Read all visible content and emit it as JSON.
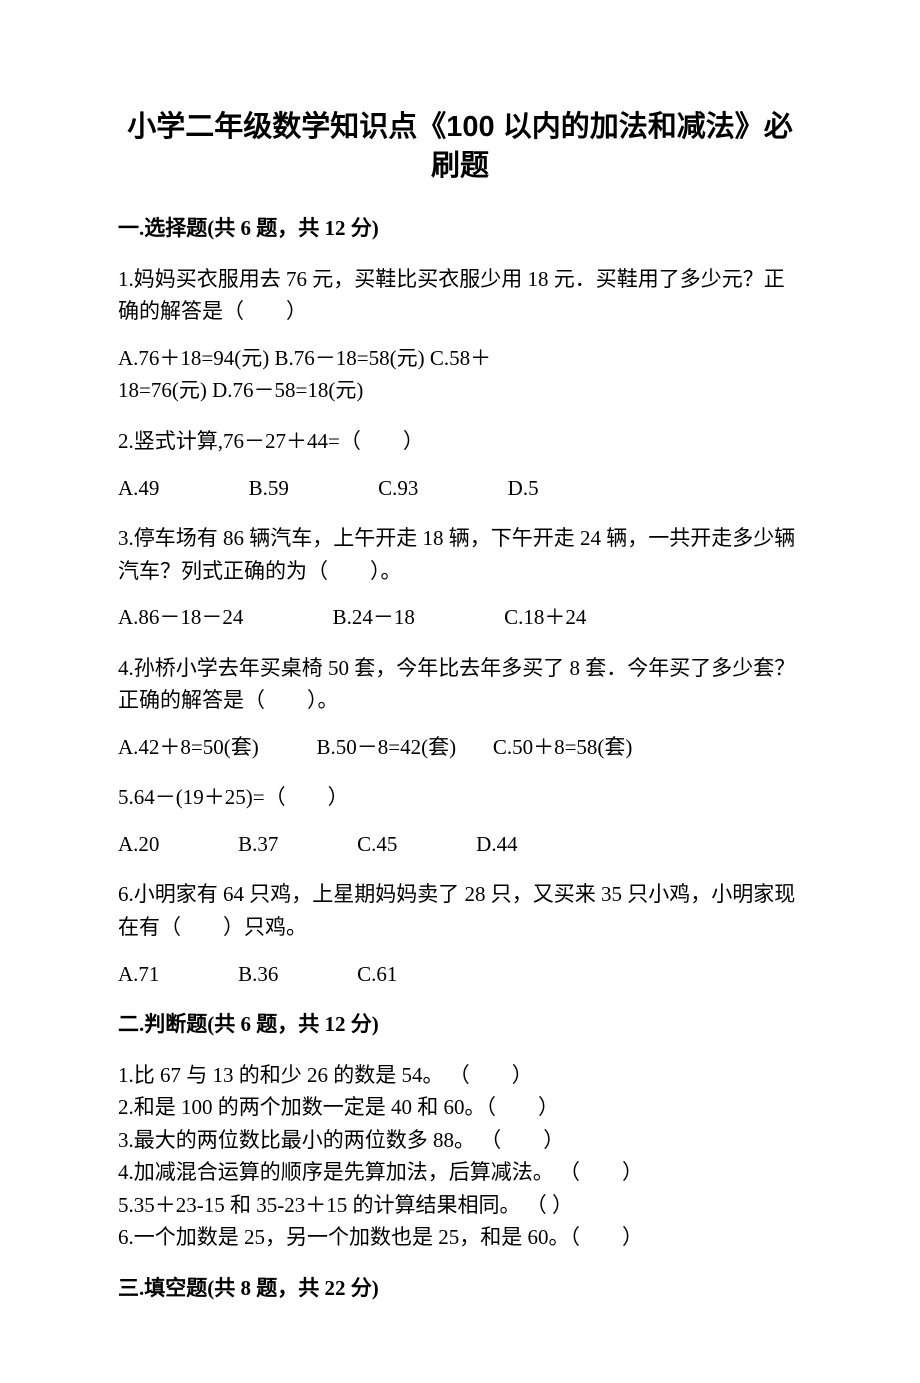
{
  "title_line1": "小学二年级数学知识点《100 以内的加法和减法》必",
  "title_line2": "刷题",
  "sections": {
    "s1": {
      "heading": "一.选择题(共 6 题，共 12 分)",
      "q1": {
        "stem": "1.妈妈买衣服用去 76 元，买鞋比买衣服少用 18 元．买鞋用了多少元？正确的解答是（　　）",
        "opts_l1": "A.76＋18=94(元)       B.76－18=58(元)      C.58＋",
        "opts_l2": "18=76(元)       D.76－58=18(元)"
      },
      "q2": {
        "stem": "2.竖式计算,76－27＋44=（　　）",
        "opts": "A.49                 B.59                 C.93                 D.5"
      },
      "q3": {
        "stem": "3.停车场有 86 辆汽车，上午开走 18 辆，下午开走 24 辆，一共开走多少辆汽车？列式正确的为（　　）。",
        "opts": "A.86－18－24                 B.24－18                 C.18＋24"
      },
      "q4": {
        "stem": "4.孙桥小学去年买桌椅 50 套，今年比去年多买了 8 套．今年买了多少套？正确的解答是（　　）。",
        "opts": "A.42＋8=50(套)           B.50－8=42(套)       C.50＋8=58(套)"
      },
      "q5": {
        "stem": "5.64－(19＋25)=（　　）",
        "opts": "A.20               B.37               C.45               D.44"
      },
      "q6": {
        "stem": "6.小明家有 64 只鸡，上星期妈妈卖了 28 只，又买来 35 只小鸡，小明家现在有（　　）只鸡。",
        "opts": "A.71               B.36               C.61"
      }
    },
    "s2": {
      "heading": "二.判断题(共 6 题，共 12 分)",
      "items": {
        "t1": "1.比 67 与 13 的和少 26 的数是 54。         （　　）",
        "t2": "2.和是 100 的两个加数一定是 40 和 60。（　　）",
        "t3": "3.最大的两位数比最小的两位数多 88。 （　　）",
        "t4": "4.加减混合运算的顺序是先算加法，后算减法。       （　　）",
        "t5": "5.35＋23-15 和 35-23＋15 的计算结果相同。      （    ）",
        "t6": "6.一个加数是 25，另一个加数也是 25，和是 60。（　　）"
      }
    },
    "s3": {
      "heading": "三.填空题(共 8 题，共 22 分)"
    }
  }
}
